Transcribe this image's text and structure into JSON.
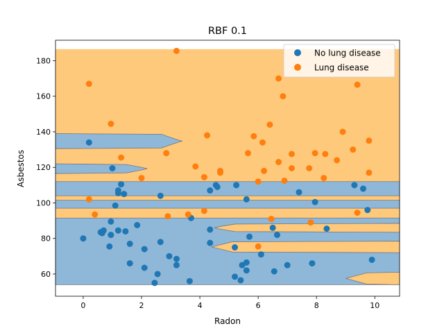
{
  "chart_data": {
    "type": "scatter",
    "title": "RBF 0.1",
    "xlabel": "Radon",
    "ylabel": "Asbestos",
    "xlim": [
      -0.95,
      10.85
    ],
    "ylim": [
      47.5,
      191.5
    ],
    "xticks": [
      0,
      2,
      4,
      6,
      8,
      10
    ],
    "yticks": [
      60,
      80,
      100,
      120,
      140,
      160,
      180
    ],
    "grid": false,
    "legend_position": "top-right",
    "colors": {
      "no_disease": "#1f77b4",
      "disease": "#ff7f0e",
      "region_disease": "#ffc97c",
      "region_no_disease": "#8fb7d8",
      "boundary": "#777777"
    },
    "decision_region": {
      "x_range": [
        -0.95,
        10.85
      ],
      "y_range": [
        54,
        186.5
      ],
      "background_class": "Lung disease",
      "no_disease_bands": [
        {
          "x_end": 3.4,
          "y_top": 139,
          "y_bottom": 130.5
        },
        {
          "x_end": 2.2,
          "y_top": 122,
          "y_bottom": 116.5
        },
        {
          "x_end": 10.85,
          "y_top": 112,
          "y_bottom": 104
        },
        {
          "x_end": 10.85,
          "y_top": 101.5,
          "y_bottom": 97
        },
        {
          "x_end": 10.85,
          "y_top": 91.5,
          "y_bottom": 54
        }
      ],
      "disease_inlays": [
        {
          "x_start": 4.5,
          "y_top": 88.5,
          "y_bottom": 83.5
        },
        {
          "x_start": 4.4,
          "y_top": 78.5,
          "y_bottom": 72
        },
        {
          "x_start": 9.0,
          "y_top": 61,
          "y_bottom": 54
        }
      ]
    },
    "series": [
      {
        "name": "No lung disease",
        "points": [
          [
            0.2,
            134
          ],
          [
            1.0,
            119.5
          ],
          [
            1.3,
            110.5
          ],
          [
            1.2,
            107
          ],
          [
            1.2,
            105.5
          ],
          [
            1.4,
            105
          ],
          [
            1.1,
            98.5
          ],
          [
            0.0,
            80
          ],
          [
            0.6,
            83.5
          ],
          [
            0.65,
            83
          ],
          [
            0.7,
            84.5
          ],
          [
            0.95,
            82
          ],
          [
            1.2,
            84.5
          ],
          [
            1.45,
            84
          ],
          [
            0.95,
            89.5
          ],
          [
            0.9,
            75.5
          ],
          [
            1.85,
            87.5
          ],
          [
            1.6,
            77
          ],
          [
            1.6,
            66
          ],
          [
            2.1,
            74
          ],
          [
            2.1,
            63.5
          ],
          [
            2.55,
            60
          ],
          [
            2.45,
            55
          ],
          [
            2.65,
            78
          ],
          [
            2.95,
            70
          ],
          [
            3.2,
            68.5
          ],
          [
            3.2,
            65
          ],
          [
            2.65,
            104
          ],
          [
            3.7,
            91.5
          ],
          [
            3.65,
            56
          ],
          [
            4.35,
            107
          ],
          [
            4.55,
            110
          ],
          [
            4.6,
            109
          ],
          [
            4.35,
            85
          ],
          [
            4.35,
            77.5
          ],
          [
            5.2,
            75
          ],
          [
            5.2,
            58.5
          ],
          [
            5.4,
            56.5
          ],
          [
            5.45,
            65
          ],
          [
            5.6,
            62
          ],
          [
            5.6,
            66.5
          ],
          [
            5.25,
            110
          ],
          [
            5.6,
            102
          ],
          [
            5.7,
            81
          ],
          [
            6.1,
            71
          ],
          [
            6.5,
            86
          ],
          [
            6.65,
            82
          ],
          [
            6.55,
            61.5
          ],
          [
            7.0,
            65
          ],
          [
            7.4,
            106
          ],
          [
            7.85,
            66
          ],
          [
            7.95,
            100.5
          ],
          [
            8.35,
            85.5
          ],
          [
            9.3,
            110
          ],
          [
            9.6,
            108
          ],
          [
            9.75,
            96
          ],
          [
            9.9,
            68
          ]
        ]
      },
      {
        "name": "Lung disease",
        "points": [
          [
            0.2,
            167
          ],
          [
            0.95,
            144.5
          ],
          [
            1.3,
            125.5
          ],
          [
            2.0,
            114
          ],
          [
            0.2,
            102
          ],
          [
            0.4,
            93.5
          ],
          [
            3.2,
            185.5
          ],
          [
            2.85,
            128
          ],
          [
            2.9,
            92.5
          ],
          [
            3.6,
            93.5
          ],
          [
            3.85,
            120.5
          ],
          [
            4.15,
            114.5
          ],
          [
            4.25,
            138
          ],
          [
            4.15,
            95.5
          ],
          [
            4.7,
            118
          ],
          [
            4.7,
            117
          ],
          [
            5.65,
            128
          ],
          [
            5.85,
            137.5
          ],
          [
            6.15,
            134
          ],
          [
            6.2,
            118
          ],
          [
            6.0,
            112
          ],
          [
            6.4,
            144
          ],
          [
            6.7,
            170
          ],
          [
            6.7,
            123
          ],
          [
            6.85,
            160
          ],
          [
            6.9,
            112.5
          ],
          [
            7.15,
            127.5
          ],
          [
            7.15,
            119.5
          ],
          [
            7.75,
            119.5
          ],
          [
            7.95,
            128
          ],
          [
            8.3,
            127.5
          ],
          [
            8.25,
            114
          ],
          [
            8.7,
            124
          ],
          [
            8.9,
            140
          ],
          [
            9.25,
            130
          ],
          [
            9.4,
            166.5
          ],
          [
            9.4,
            94.5
          ],
          [
            9.8,
            135
          ],
          [
            9.8,
            117
          ],
          [
            7.8,
            89
          ],
          [
            6.45,
            91
          ],
          [
            6.0,
            75.5
          ]
        ]
      }
    ]
  }
}
